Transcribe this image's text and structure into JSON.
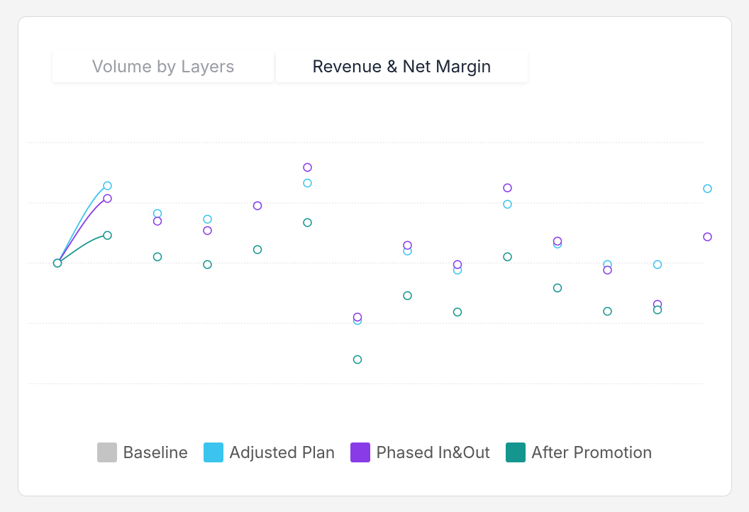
{
  "tabs": [
    "Volume by Layers",
    "Revenue & Net Margin"
  ],
  "active_tab": 1,
  "chart_data": {
    "type": "line",
    "categories": [
      null,
      null,
      null,
      null,
      null,
      null,
      null,
      null,
      null,
      null,
      null,
      null,
      null,
      null
    ],
    "ylim": [
      0,
      100
    ],
    "yticks": [
      0,
      25,
      50,
      75,
      100
    ],
    "grid": true,
    "series": [
      {
        "name": "Baseline",
        "color": "#c4c4c4",
        "values": [
          null,
          null,
          null,
          null,
          null,
          null,
          null,
          null,
          null,
          null,
          null,
          null,
          null,
          null
        ]
      },
      {
        "name": "Adjusted Plan",
        "color": "#3bc4ee",
        "values": [
          50,
          82.1,
          70.6,
          68.2,
          73.8,
          83.2,
          26.2,
          55,
          47.1,
          74.4,
          57.9,
          49.4,
          49.4,
          80.9
        ]
      },
      {
        "name": "Phased In&Out",
        "color": "#8a3be8",
        "values": [
          50,
          76.8,
          67.4,
          63.5,
          73.8,
          89.7,
          27.6,
          57.4,
          49.4,
          81.2,
          59.1,
          47.1,
          32.9,
          60.9
        ]
      },
      {
        "name": "After Promotion",
        "color": "#14968f",
        "values": [
          50,
          61.5,
          52.6,
          49.4,
          55.6,
          66.8,
          10,
          36.5,
          29.7,
          52.6,
          39.7,
          30,
          30.6,
          null
        ]
      }
    ]
  }
}
